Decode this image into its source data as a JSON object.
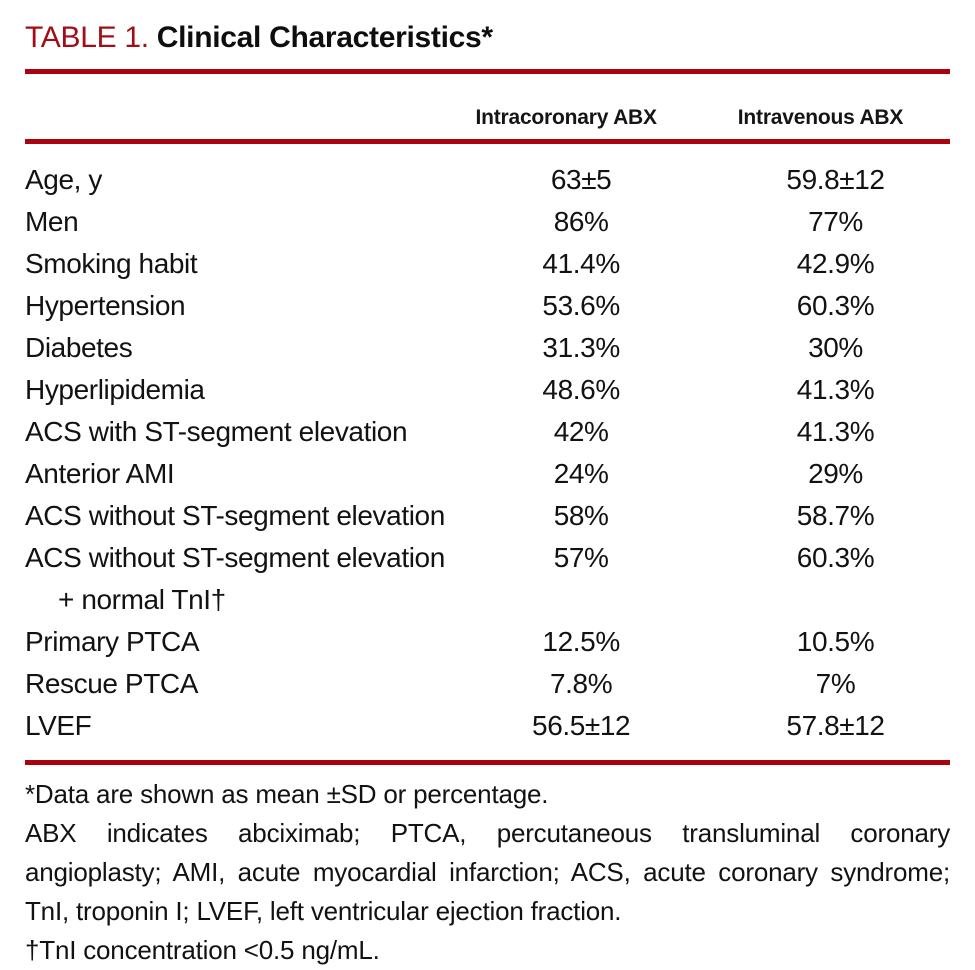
{
  "title": {
    "number": "TABLE 1.",
    "text": "Clinical Characteristics*"
  },
  "columns": {
    "intracoronary": "Intracoronary ABX",
    "intravenous": "Intravenous ABX"
  },
  "rows": [
    {
      "label": "Age, y",
      "c1": "63±5",
      "c2": "59.8±12"
    },
    {
      "label": "Men",
      "c1": "86%",
      "c2": "77%"
    },
    {
      "label": "Smoking habit",
      "c1": "41.4%",
      "c2": "42.9%"
    },
    {
      "label": "Hypertension",
      "c1": "53.6%",
      "c2": "60.3%"
    },
    {
      "label": "Diabetes",
      "c1": "31.3%",
      "c2": "30%"
    },
    {
      "label": "Hyperlipidemia",
      "c1": "48.6%",
      "c2": "41.3%"
    },
    {
      "label": "ACS with ST-segment elevation",
      "c1": "42%",
      "c2": "41.3%"
    },
    {
      "label": "Anterior AMI",
      "c1": "24%",
      "c2": "29%"
    },
    {
      "label": "ACS without ST-segment elevation",
      "c1": "58%",
      "c2": "58.7%"
    },
    {
      "label": "ACS without ST-segment elevation",
      "c1": "57%",
      "c2": "60.3%"
    },
    {
      "label": "+ normal TnI†",
      "c1": "",
      "c2": ""
    },
    {
      "label": "Primary PTCA",
      "c1": "12.5%",
      "c2": "10.5%"
    },
    {
      "label": "Rescue PTCA",
      "c1": "7.8%",
      "c2": "7%"
    },
    {
      "label": "LVEF",
      "c1": "56.5±12",
      "c2": "57.8±12"
    }
  ],
  "footnotes": {
    "data_note": "*Data are shown as mean ±SD or percentage.",
    "abbreviations": "ABX indicates abciximab; PTCA, percutaneous transluminal coronary angioplasty; AMI, acute myocardial infarction; ACS, acute coronary syndrome; TnI, troponin I; LVEF, left ventricular ejection fraction.",
    "tni_note": "†TnI concentration <0.5 ng/mL."
  },
  "colors": {
    "accent_red": "#a30d16",
    "rule_red": "#aa0310",
    "text_black": "#121212"
  }
}
